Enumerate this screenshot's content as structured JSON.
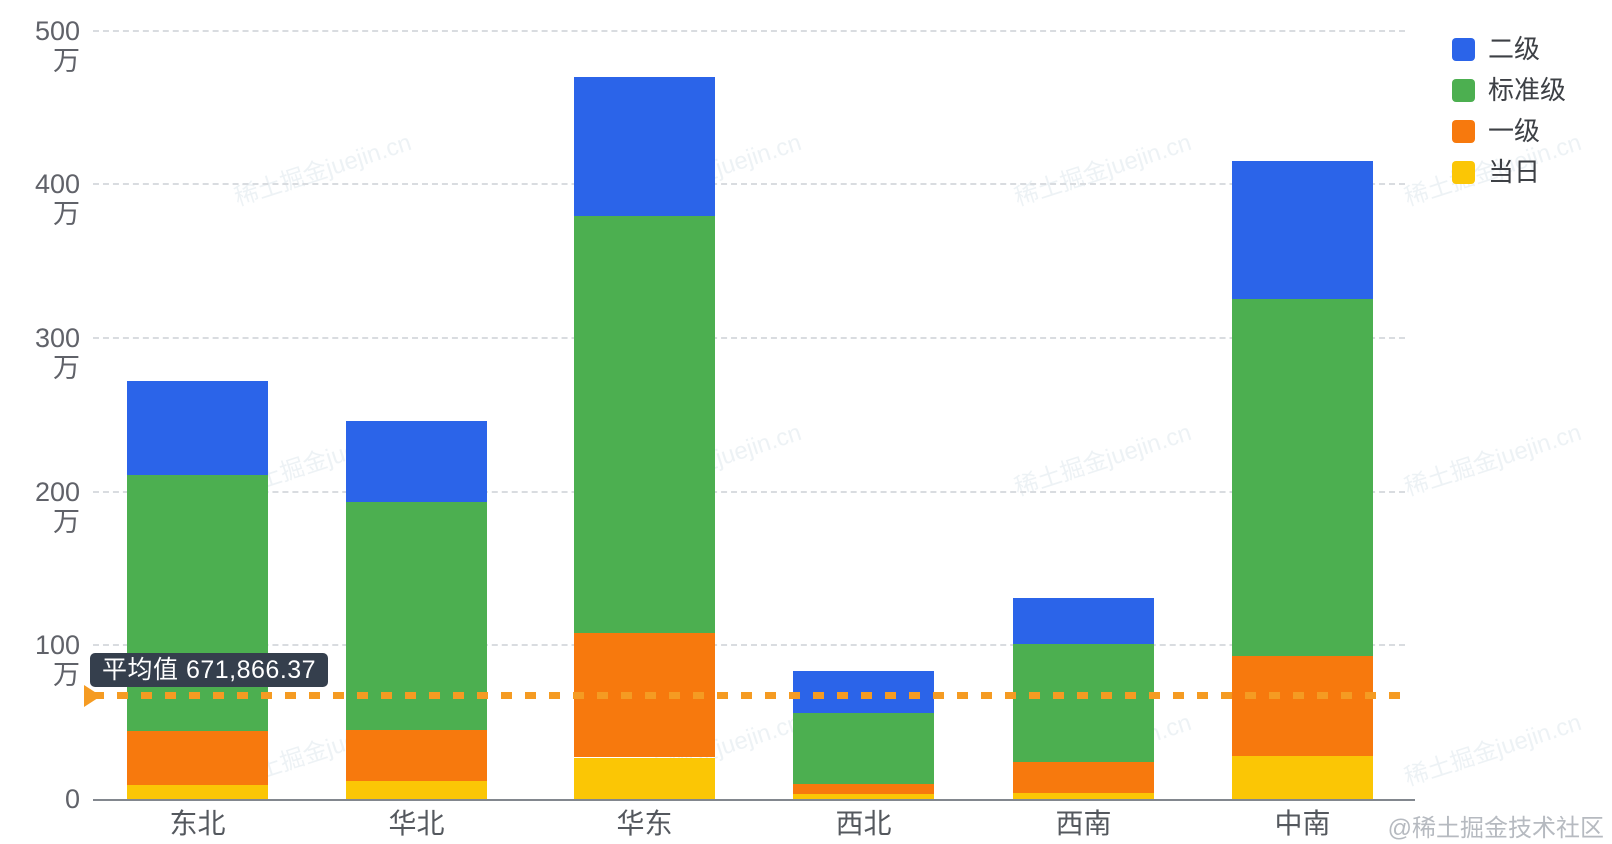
{
  "chart_data": {
    "type": "bar",
    "stacked": true,
    "unit": "万",
    "categories": [
      "东北",
      "华北",
      "华东",
      "西北",
      "西南",
      "中南"
    ],
    "series": [
      {
        "name": "当日",
        "color": "#FBC605",
        "values_wan": [
          9,
          12,
          27,
          3,
          4,
          28
        ]
      },
      {
        "name": "一级",
        "color": "#F7790D",
        "values_wan": [
          35,
          33,
          81,
          7,
          20,
          65
        ]
      },
      {
        "name": "标准级",
        "color": "#4CAF50",
        "values_wan": [
          167,
          148,
          271,
          46,
          77,
          232
        ]
      },
      {
        "name": "二级",
        "color": "#2B64E9",
        "values_wan": [
          61,
          53,
          91,
          27,
          30,
          90
        ]
      }
    ],
    "stack_order_bottom_to_top": [
      "当日",
      "一级",
      "标准级",
      "二级"
    ],
    "legend": {
      "position": "top-right",
      "items": [
        "二级",
        "标准级",
        "一级",
        "当日"
      ]
    },
    "y_axis": {
      "tick_labels": [
        "0",
        "100万",
        "200万",
        "300万",
        "400万",
        "500万"
      ],
      "tick_values_wan": [
        0,
        100,
        200,
        300,
        400,
        500
      ],
      "ylim_wan": [
        0,
        500
      ],
      "gridline_style": "dashed"
    },
    "average_line": {
      "label": "平均值 671,866.37",
      "value": 671866.37,
      "value_wan": 67.186637,
      "color": "#F59B22",
      "style": "dashed"
    }
  },
  "footer": {
    "attribution": "@稀土掘金技术社区"
  },
  "watermark": {
    "text": "稀土掘金juejin.cn"
  }
}
